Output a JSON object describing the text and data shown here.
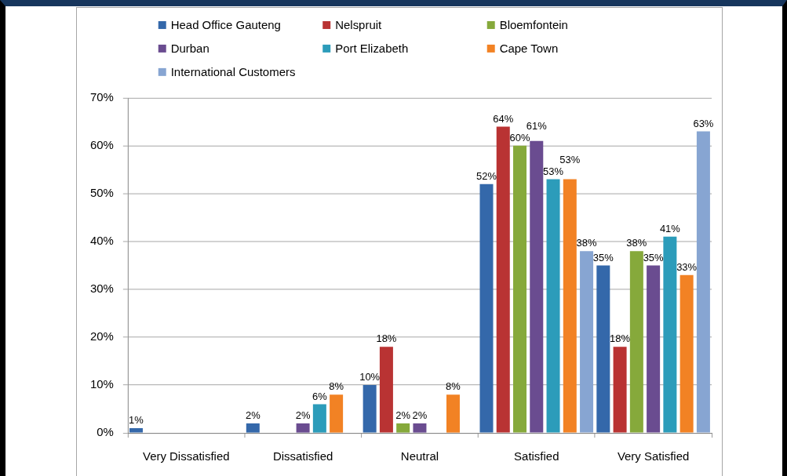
{
  "chart_data": {
    "type": "bar",
    "categories": [
      "Very Dissatisfied",
      "Dissatisfied",
      "Neutral",
      "Satisfied",
      "Very Satisfied"
    ],
    "series": [
      {
        "name": "Head Office Gauteng",
        "color": "#3468aa",
        "values": [
          1,
          2,
          10,
          52,
          35
        ],
        "value_labels": [
          "1%",
          "2%",
          "10%",
          "52%",
          "35%"
        ]
      },
      {
        "name": "Nelspruit",
        "color": "#b93333",
        "values": [
          null,
          null,
          18,
          64,
          18
        ],
        "value_labels": [
          null,
          null,
          "18%",
          "64%",
          "18%"
        ]
      },
      {
        "name": "Bloemfontein",
        "color": "#86a93b",
        "values": [
          null,
          null,
          2,
          60,
          38
        ],
        "value_labels": [
          null,
          null,
          "2%",
          "60%",
          "38%"
        ]
      },
      {
        "name": "Durban",
        "color": "#6a4c90",
        "values": [
          null,
          2,
          2,
          61,
          35
        ],
        "value_labels": [
          null,
          "2%",
          "2%",
          "61%",
          "35%"
        ]
      },
      {
        "name": "Port Elizabeth",
        "color": "#2c9cba",
        "values": [
          null,
          6,
          null,
          53,
          41
        ],
        "value_labels": [
          null,
          "6%",
          null,
          "53%",
          "41%"
        ]
      },
      {
        "name": "Cape Town",
        "color": "#f28224",
        "values": [
          null,
          8,
          8,
          53,
          33
        ],
        "value_labels": [
          null,
          "8%",
          "8%",
          "53%",
          "33%"
        ]
      },
      {
        "name": "International Customers",
        "color": "#87a5d2",
        "values": [
          null,
          null,
          null,
          38,
          63
        ],
        "value_labels": [
          null,
          null,
          null,
          "38%",
          "63%"
        ]
      }
    ],
    "ylim": [
      0,
      70
    ],
    "yticks": [
      {
        "value": 0,
        "label": "0%"
      },
      {
        "value": 10,
        "label": "10%"
      },
      {
        "value": 20,
        "label": "20%"
      },
      {
        "value": 30,
        "label": "30%"
      },
      {
        "value": 40,
        "label": "40%"
      },
      {
        "value": 50,
        "label": "50%"
      },
      {
        "value": 60,
        "label": "60%"
      },
      {
        "value": 70,
        "label": "70%"
      }
    ],
    "grid": "y",
    "legend": "top"
  }
}
